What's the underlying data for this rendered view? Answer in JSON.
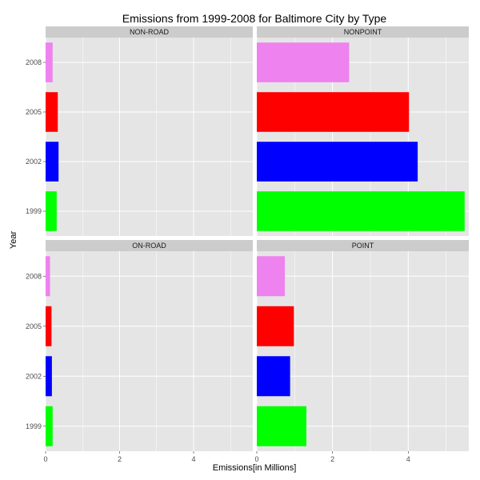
{
  "chart_data": {
    "type": "bar",
    "orientation": "horizontal",
    "title": "Emissions from 1999-2008 for Baltimore City by Type",
    "xlabel": "Emissions[in Millions]",
    "ylabel": "Year",
    "xlim": [
      0,
      5.6
    ],
    "x_ticks": [
      "0",
      "2",
      "4"
    ],
    "x_tick_values": [
      0,
      2,
      4
    ],
    "categories": [
      "1999",
      "2002",
      "2005",
      "2008"
    ],
    "colors": {
      "1999": "#00ff00",
      "2002": "#0000ff",
      "2005": "#ff0000",
      "2008": "#ee82ee"
    },
    "panel_background": "#e5e5e5",
    "strip_background": "#cccccc",
    "grid_color": "#ffffff",
    "grid": true,
    "legend": "none",
    "facets": [
      {
        "name": "NON-ROAD",
        "values": [
          0.3,
          0.35,
          0.33,
          0.19
        ]
      },
      {
        "name": "NONPOINT",
        "values": [
          5.49,
          4.25,
          4.02,
          2.44
        ]
      },
      {
        "name": "ON-ROAD",
        "values": [
          0.19,
          0.17,
          0.16,
          0.12
        ]
      },
      {
        "name": "POINT",
        "values": [
          1.31,
          0.88,
          0.98,
          0.74
        ]
      }
    ]
  }
}
